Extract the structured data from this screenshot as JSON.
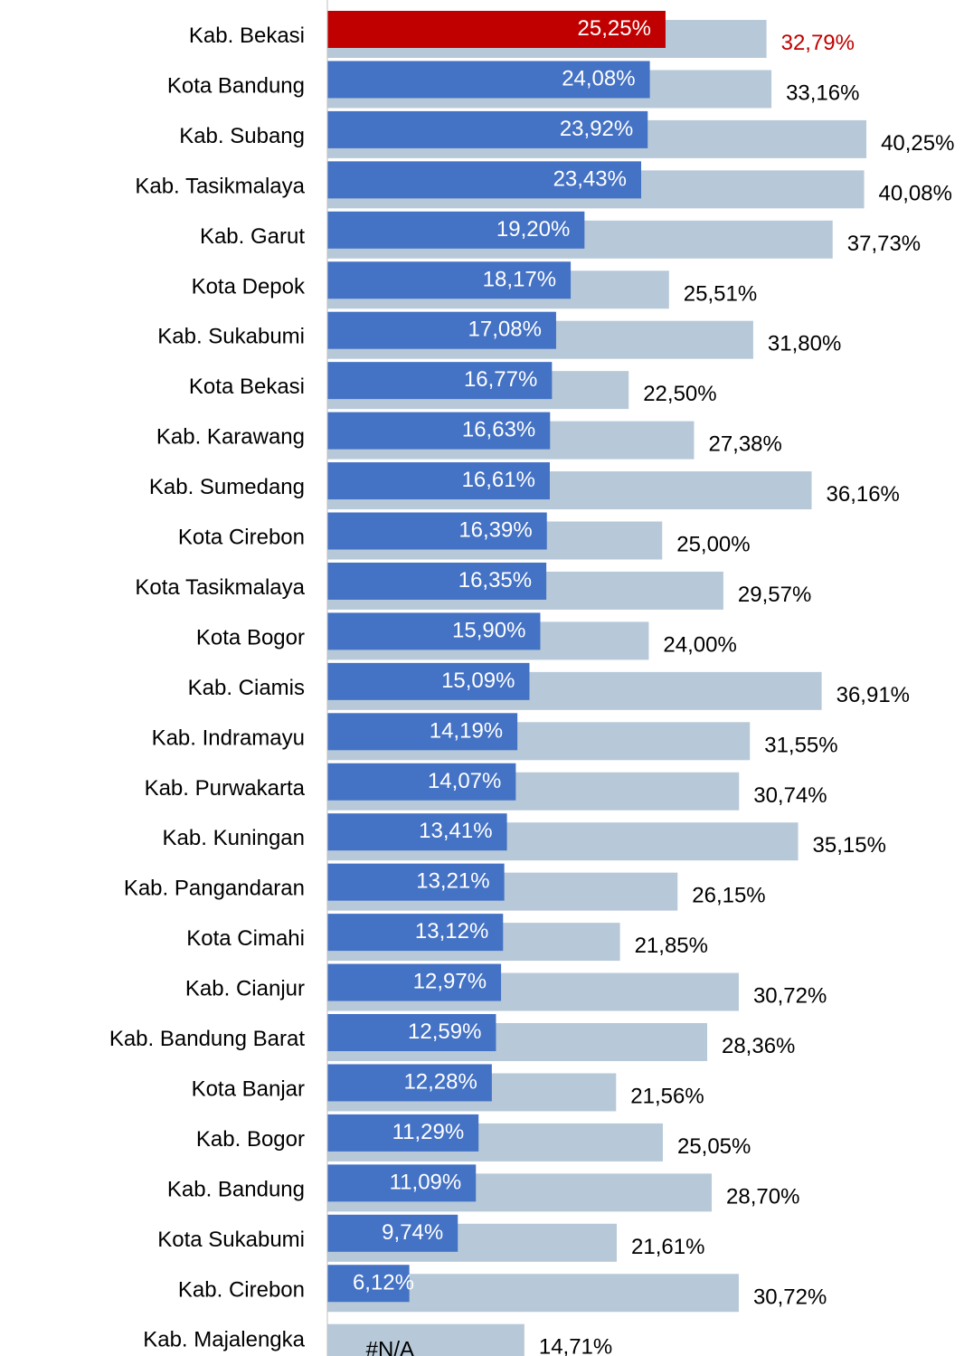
{
  "chart_data": {
    "type": "overlap_bar",
    "categories": [
      "Kab. Bekasi",
      "Kota Bandung",
      "Kab. Subang",
      "Kab. Tasikmalaya",
      "Kab. Garut",
      "Kota Depok",
      "Kab. Sukabumi",
      "Kota Bekasi",
      "Kab. Karawang",
      "Kab. Sumedang",
      "Kota Cirebon",
      "Kota Tasikmalaya",
      "Kota Bogor",
      "Kab. Ciamis",
      "Kab. Indramayu",
      "Kab. Purwakarta",
      "Kab. Kuningan",
      "Kab. Pangandaran",
      "Kota Cimahi",
      "Kab. Cianjur",
      "Kab. Bandung Barat",
      "Kota Banjar",
      "Kab. Bogor",
      "Kab. Bandung",
      "Kota Sukabumi",
      "Kab. Cirebon",
      "Kab. Majalengka"
    ],
    "series": [
      {
        "color": "#b7c9d9",
        "label_color": "#000000",
        "values": [
          32.79,
          33.16,
          40.25,
          40.08,
          37.73,
          25.51,
          31.8,
          22.5,
          27.38,
          36.16,
          25.0,
          29.57,
          24.0,
          36.91,
          31.55,
          30.74,
          35.15,
          26.15,
          21.85,
          30.72,
          28.36,
          21.56,
          25.05,
          28.7,
          21.61,
          30.72,
          14.71
        ],
        "value_labels": [
          "32,79%",
          "33,16%",
          "40,25%",
          "40,08%",
          "37,73%",
          "25,51%",
          "31,80%",
          "22,50%",
          "27,38%",
          "36,16%",
          "25,00%",
          "29,57%",
          "24,00%",
          "36,91%",
          "31,55%",
          "30,74%",
          "35,15%",
          "26,15%",
          "21,85%",
          "30,72%",
          "28,36%",
          "21,56%",
          "25,05%",
          "28,70%",
          "21,61%",
          "30,72%",
          "14,71%"
        ]
      },
      {
        "color": "#4472c4",
        "label_color": "#ffffff",
        "values": [
          25.25,
          24.08,
          23.92,
          23.43,
          19.2,
          18.17,
          17.08,
          16.77,
          16.63,
          16.61,
          16.39,
          16.35,
          15.9,
          15.09,
          14.19,
          14.07,
          13.41,
          13.21,
          13.12,
          12.97,
          12.59,
          12.28,
          11.29,
          11.09,
          9.74,
          6.12,
          null
        ],
        "value_labels": [
          "25,25%",
          "24,08%",
          "23,92%",
          "23,43%",
          "19,20%",
          "18,17%",
          "17,08%",
          "16,77%",
          "16,63%",
          "16,61%",
          "16,39%",
          "16,35%",
          "15,90%",
          "15,09%",
          "14,19%",
          "14,07%",
          "13,41%",
          "13,21%",
          "13,12%",
          "12,97%",
          "12,59%",
          "12,28%",
          "11,29%",
          "11,09%",
          "9,74%",
          "6,12%",
          "#N/A"
        ]
      }
    ],
    "highlight": {
      "index": 0,
      "color": "#c00000"
    },
    "xlim": [
      0,
      47.2
    ]
  }
}
